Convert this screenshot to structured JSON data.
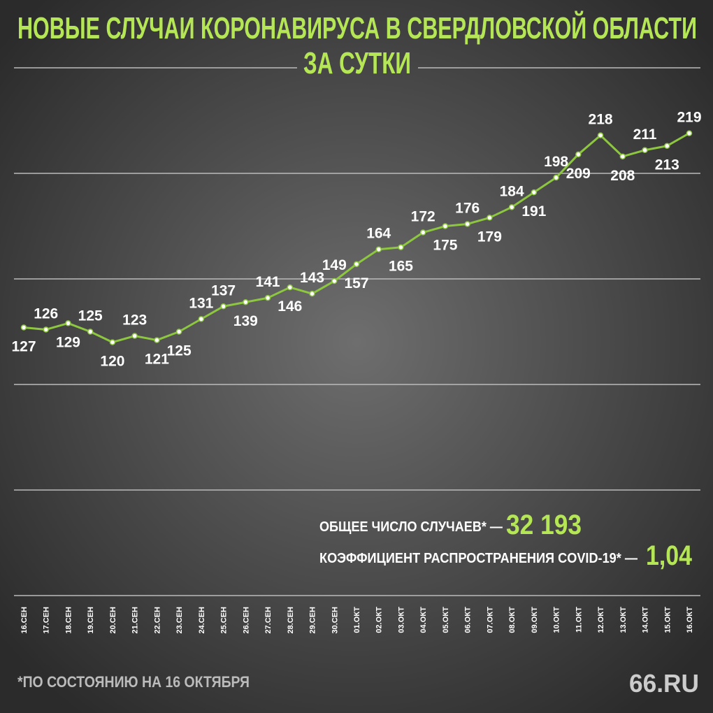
{
  "chart_data": {
    "type": "line",
    "title": "НОВЫЕ СЛУЧАИ КОРОНАВИРУСА В СВЕРДЛОВСКОЙ ОБЛАСТИ",
    "subtitle": "ЗА СУТКИ",
    "categories": [
      "16.СЕН",
      "17.СЕН",
      "18.СЕН",
      "19.СЕН",
      "20.СЕН",
      "21.СЕН",
      "22.СЕН",
      "23.СЕН",
      "24.СЕН",
      "25.СЕН",
      "26.СЕН",
      "27.СЕН",
      "28.СЕН",
      "29.СЕН",
      "30.СЕН",
      "01.ОКТ",
      "02.ОКТ",
      "03.ОКТ",
      "04.ОКТ",
      "05.ОКТ",
      "06.ОКТ",
      "07.ОКТ",
      "08.ОКТ",
      "09.ОКТ",
      "10.ОКТ",
      "11.ОКТ",
      "12.ОКТ",
      "13.ОКТ",
      "14.ОКТ",
      "15.ОКТ",
      "16.ОКТ"
    ],
    "series": [
      {
        "color": "#8dc63f",
        "values": [
          127,
          126,
          129,
          125,
          120,
          123,
          121,
          125,
          131,
          137,
          139,
          141,
          146,
          143,
          149,
          157,
          164,
          165,
          172,
          175,
          176,
          179,
          184,
          191,
          198,
          209,
          218,
          208,
          211,
          213,
          219
        ]
      }
    ],
    "ylim": [
      0,
      250
    ],
    "yticks": [
      0,
      50,
      100,
      150,
      200,
      250
    ],
    "grid": true,
    "annotations": {
      "total_label": "ОБЩЕЕ ЧИСЛО СЛУЧАЕВ* —",
      "total_value": "32 193",
      "rate_label": "КОЭФФИЦИЕНТ РАСПРОСТРАНЕНИЯ COVID-19* —",
      "rate_value": "1,04",
      "footnote": "*ПО СОСТОЯНИЮ НА 16 ОКТЯБРЯ",
      "logo": "66.RU"
    }
  }
}
